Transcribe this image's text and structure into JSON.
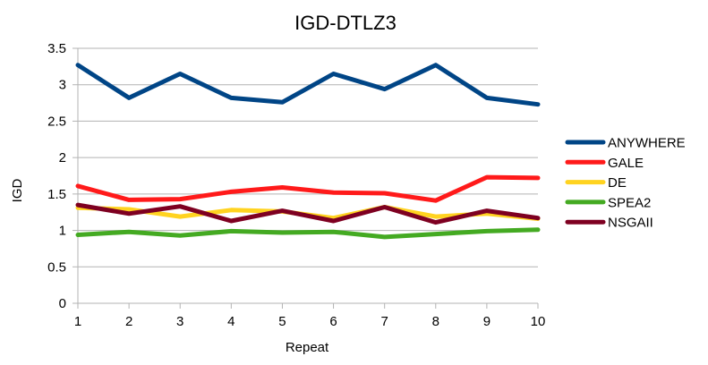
{
  "chart_data": {
    "type": "line",
    "title": "IGD-DTLZ3",
    "xlabel": "Repeat",
    "ylabel": "IGD",
    "x": [
      1,
      2,
      3,
      4,
      5,
      6,
      7,
      8,
      9,
      10
    ],
    "x_tick_labels": [
      "1",
      "2",
      "3",
      "4",
      "5",
      "6",
      "7",
      "8",
      "9",
      "10"
    ],
    "ylim": [
      0,
      3.5
    ],
    "y_ticks": [
      0,
      0.5,
      1,
      1.5,
      2,
      2.5,
      3,
      3.5
    ],
    "y_tick_labels": [
      "0",
      "0.5",
      "1",
      "1.5",
      "2",
      "2.5",
      "3",
      "3.5"
    ],
    "grid": "horizontal",
    "legend_position": "right",
    "series": [
      {
        "name": "ANYWHERE",
        "color": "#004586",
        "values": [
          3.27,
          2.82,
          3.15,
          2.82,
          2.76,
          3.15,
          2.94,
          3.27,
          2.82,
          2.73
        ]
      },
      {
        "name": "GALE",
        "color": "#ff1a1a",
        "values": [
          1.61,
          1.42,
          1.43,
          1.53,
          1.59,
          1.52,
          1.51,
          1.41,
          1.73,
          1.72
        ]
      },
      {
        "name": "DE",
        "color": "#ffd320",
        "values": [
          1.31,
          1.29,
          1.19,
          1.28,
          1.26,
          1.17,
          1.32,
          1.19,
          1.23,
          1.16
        ]
      },
      {
        "name": "SPEA2",
        "color": "#44aa22",
        "values": [
          0.94,
          0.98,
          0.93,
          0.99,
          0.97,
          0.98,
          0.91,
          0.95,
          0.99,
          1.01
        ]
      },
      {
        "name": "NSGAII",
        "color": "#7e0021",
        "values": [
          1.35,
          1.23,
          1.33,
          1.13,
          1.27,
          1.13,
          1.32,
          1.11,
          1.27,
          1.17
        ]
      }
    ]
  }
}
